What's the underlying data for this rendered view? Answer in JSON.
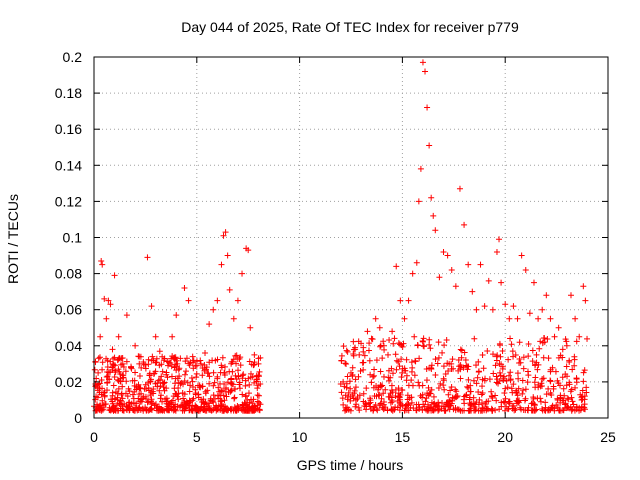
{
  "chart_data": {
    "type": "scatter",
    "title": "Day 044 of 2025, Rate Of TEC Index for receiver p779",
    "xlabel": "GPS time / hours",
    "ylabel": "ROTI / TECUs",
    "xlim": [
      0,
      25
    ],
    "ylim": [
      0,
      0.2
    ],
    "x_ticks": [
      0,
      5,
      10,
      15,
      20,
      25
    ],
    "y_ticks": [
      0,
      0.02,
      0.04,
      0.06,
      0.08,
      0.1,
      0.12,
      0.14,
      0.16,
      0.18,
      0.2
    ],
    "x_tick_labels": [
      "0",
      "5",
      "10",
      "15",
      "20",
      "25"
    ],
    "y_tick_labels": [
      "0",
      "0.02",
      "0.04",
      "0.06",
      "0.08",
      "0.1",
      "0.12",
      "0.14",
      "0.16",
      "0.18",
      "0.2"
    ],
    "grid": true,
    "marker": "plus",
    "marker_color": "#ff0000",
    "series": [
      {
        "name": "ROTI",
        "points": [
          [
            0.1,
            0.012
          ],
          [
            0.2,
            0.025
          ],
          [
            0.3,
            0.045
          ],
          [
            0.35,
            0.087
          ],
          [
            0.4,
            0.085
          ],
          [
            0.5,
            0.066
          ],
          [
            0.6,
            0.055
          ],
          [
            0.7,
            0.065
          ],
          [
            0.8,
            0.063
          ],
          [
            0.9,
            0.038
          ],
          [
            1.0,
            0.079
          ],
          [
            1.2,
            0.045
          ],
          [
            1.4,
            0.03
          ],
          [
            1.6,
            0.057
          ],
          [
            1.8,
            0.028
          ],
          [
            2.0,
            0.04
          ],
          [
            2.2,
            0.034
          ],
          [
            2.4,
            0.031
          ],
          [
            2.6,
            0.089
          ],
          [
            2.8,
            0.062
          ],
          [
            3.0,
            0.045
          ],
          [
            3.2,
            0.037
          ],
          [
            3.4,
            0.032
          ],
          [
            3.6,
            0.029
          ],
          [
            3.8,
            0.045
          ],
          [
            4.0,
            0.057
          ],
          [
            4.2,
            0.033
          ],
          [
            4.4,
            0.072
          ],
          [
            4.6,
            0.065
          ],
          [
            4.8,
            0.034
          ],
          [
            5.0,
            0.029
          ],
          [
            5.2,
            0.03
          ],
          [
            5.4,
            0.036
          ],
          [
            5.6,
            0.052
          ],
          [
            5.8,
            0.06
          ],
          [
            6.0,
            0.065
          ],
          [
            6.2,
            0.085
          ],
          [
            6.3,
            0.101
          ],
          [
            6.4,
            0.103
          ],
          [
            6.5,
            0.09
          ],
          [
            6.6,
            0.071
          ],
          [
            6.8,
            0.055
          ],
          [
            7.0,
            0.065
          ],
          [
            7.2,
            0.08
          ],
          [
            7.4,
            0.094
          ],
          [
            7.5,
            0.093
          ],
          [
            7.6,
            0.05
          ],
          [
            7.8,
            0.035
          ],
          [
            8.0,
            0.03
          ],
          [
            12.1,
            0.011
          ],
          [
            12.3,
            0.019
          ],
          [
            12.5,
            0.025
          ],
          [
            12.7,
            0.038
          ],
          [
            12.9,
            0.035
          ],
          [
            13.1,
            0.039
          ],
          [
            13.3,
            0.048
          ],
          [
            13.5,
            0.044
          ],
          [
            13.7,
            0.055
          ],
          [
            13.9,
            0.05
          ],
          [
            14.1,
            0.04
          ],
          [
            14.3,
            0.035
          ],
          [
            14.5,
            0.048
          ],
          [
            14.7,
            0.084
          ],
          [
            14.9,
            0.065
          ],
          [
            15.1,
            0.055
          ],
          [
            15.3,
            0.065
          ],
          [
            15.5,
            0.08
          ],
          [
            15.7,
            0.086
          ],
          [
            15.8,
            0.12
          ],
          [
            15.9,
            0.138
          ],
          [
            16.0,
            0.197
          ],
          [
            16.1,
            0.192
          ],
          [
            16.2,
            0.172
          ],
          [
            16.3,
            0.151
          ],
          [
            16.4,
            0.122
          ],
          [
            16.5,
            0.112
          ],
          [
            16.6,
            0.104
          ],
          [
            16.8,
            0.078
          ],
          [
            17.0,
            0.092
          ],
          [
            17.2,
            0.09
          ],
          [
            17.4,
            0.082
          ],
          [
            17.6,
            0.073
          ],
          [
            17.8,
            0.127
          ],
          [
            18.0,
            0.107
          ],
          [
            18.2,
            0.085
          ],
          [
            18.4,
            0.07
          ],
          [
            18.6,
            0.06
          ],
          [
            18.8,
            0.085
          ],
          [
            19.0,
            0.062
          ],
          [
            19.2,
            0.076
          ],
          [
            19.4,
            0.06
          ],
          [
            19.6,
            0.092
          ],
          [
            19.7,
            0.099
          ],
          [
            19.8,
            0.075
          ],
          [
            20.0,
            0.063
          ],
          [
            20.2,
            0.055
          ],
          [
            20.4,
            0.062
          ],
          [
            20.6,
            0.055
          ],
          [
            20.8,
            0.09
          ],
          [
            21.0,
            0.082
          ],
          [
            21.2,
            0.058
          ],
          [
            21.4,
            0.075
          ],
          [
            21.6,
            0.055
          ],
          [
            21.8,
            0.06
          ],
          [
            22.0,
            0.068
          ],
          [
            22.2,
            0.055
          ],
          [
            22.4,
            0.045
          ],
          [
            22.6,
            0.05
          ],
          [
            22.8,
            0.038
          ],
          [
            23.0,
            0.04
          ],
          [
            23.2,
            0.068
          ],
          [
            23.4,
            0.055
          ],
          [
            23.6,
            0.045
          ],
          [
            23.8,
            0.073
          ],
          [
            23.9,
            0.065
          ]
        ]
      }
    ],
    "dense_regions": [
      {
        "x_range": [
          0,
          8.1
        ],
        "y_range": [
          0.004,
          0.035
        ]
      },
      {
        "x_range": [
          12.0,
          24.0
        ],
        "y_range": [
          0.004,
          0.045
        ]
      }
    ]
  }
}
